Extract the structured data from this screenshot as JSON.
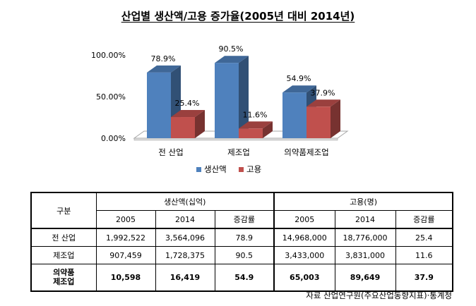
{
  "title": "산업별 생산액/고용 증가율(2005년 대비 2014년)",
  "chart_data": {
    "type": "bar",
    "categories": [
      "전 산업",
      "제조업",
      "의약품제조업"
    ],
    "series": [
      {
        "name": "생산액",
        "values": [
          78.9,
          90.5,
          54.9
        ],
        "labels": [
          "78.9%",
          "90.5%",
          "54.9%"
        ],
        "color": "#4F81BD"
      },
      {
        "name": "고용",
        "values": [
          25.4,
          11.6,
          37.9
        ],
        "labels": [
          "25.4%",
          "11.6%",
          "37.9%"
        ],
        "color": "#C0504D"
      }
    ],
    "ylim": [
      0,
      100
    ],
    "yticks": [
      "0.00%",
      "50.00%",
      "100.00%"
    ],
    "ytick_values": [
      0,
      50,
      100
    ],
    "grid": false,
    "legend": "bottom",
    "style": "3d"
  },
  "table": {
    "corner": "구분",
    "group_headers": [
      "생산액(십억)",
      "고용(명)"
    ],
    "sub_headers": [
      "2005",
      "2014",
      "증감률",
      "2005",
      "2014",
      "증감률"
    ],
    "rows": [
      {
        "label": "전 산업",
        "label_lines": [
          "전 산업"
        ],
        "values": [
          "1,992,522",
          "3,564,096",
          "78.9",
          "14,968,000",
          "18,776,000",
          "25.4"
        ],
        "bold": false
      },
      {
        "label": "제조업",
        "label_lines": [
          "제조업"
        ],
        "values": [
          "907,459",
          "1,728,375",
          "90.5",
          "3,433,000",
          "3,831,000",
          "11.6"
        ],
        "bold": false
      },
      {
        "label": "의약품 제조업",
        "label_lines": [
          "의약품",
          "제조업"
        ],
        "values": [
          "10,598",
          "16,419",
          "54.9",
          "65,003",
          "89,649",
          "37.9"
        ],
        "bold": true
      }
    ]
  },
  "source": "자료 산업연구원(주요산업동향지표)·통계청"
}
